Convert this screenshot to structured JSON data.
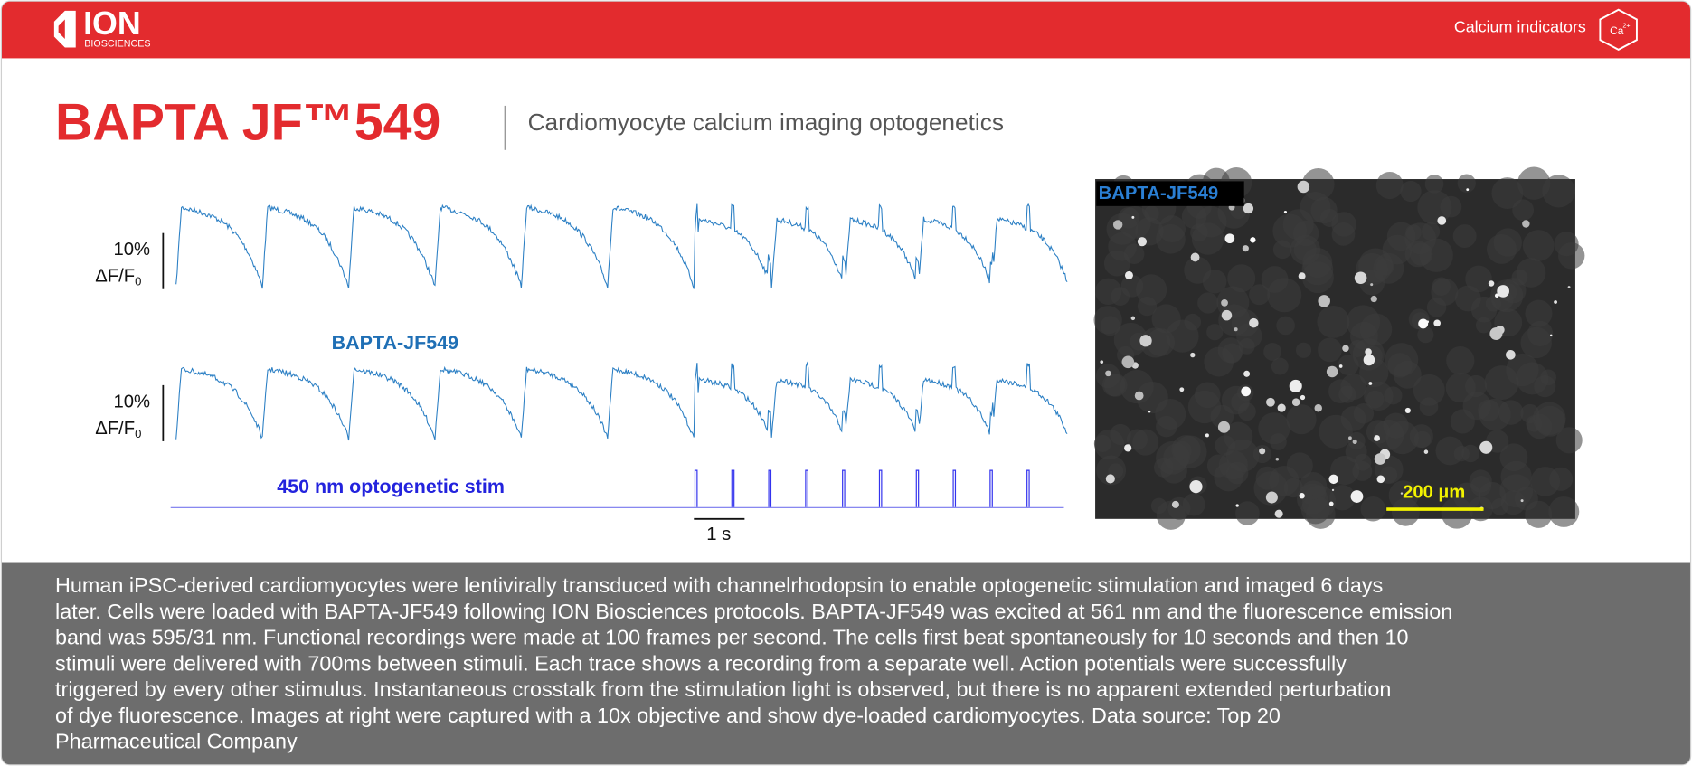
{
  "header": {
    "brand": "ION",
    "brand_sub": "BIOSCIENCES",
    "category": "Calcium indicators",
    "icon": {
      "symbol": "Ca",
      "charge": "2+"
    }
  },
  "title": "BAPTA JF™549",
  "subtitle": "Cardiomyocyte calcium imaging optogenetics",
  "figure": {
    "traces": [
      {
        "scale": "10%",
        "unit": "ΔF/F",
        "unit_subscript": "0"
      },
      {
        "scale": "10%",
        "unit": "ΔF/F",
        "unit_subscript": "0"
      }
    ],
    "trace_label": "BAPTA-JF549",
    "stim_label": "450 nm optogenetic stim",
    "time_scale": "1 s"
  },
  "image": {
    "label": "BAPTA-JF549",
    "scale_bar": "200 µm"
  },
  "description": {
    "lines": [
      "Human iPSC-derived cardiomyocytes were lentivirally transduced with channelrhodopsin to enable optogenetic stimulation and imaged 6 days",
      "later. Cells were loaded with BAPTA-JF549 following ION Biosciences protocols. BAPTA-JF549 was excited at 561 nm and the fluorescence emission",
      "band was 595/31 nm. Functional recordings were made at 100 frames per second. The cells first beat spontaneously for 10 seconds and then 10",
      "stimuli were delivered with 700ms between stimuli. Each trace shows a recording from a separate well.  Action potentials were successfully",
      "triggered by every other stimulus. Instantaneous crosstalk from the stimulation light is observed, but there is no apparent extended perturbation",
      "of dye fluorescence. Images at right were captured with a 10x objective and show dye-loaded cardiomyocytes. Data source: Top 20",
      "Pharmaceutical Company"
    ]
  }
}
